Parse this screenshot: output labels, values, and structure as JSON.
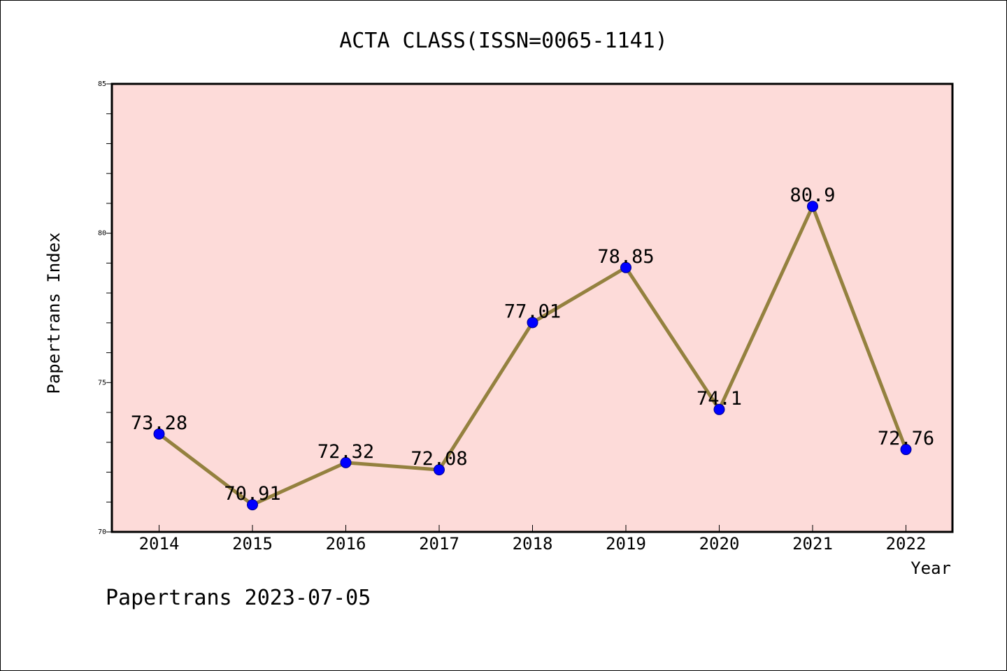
{
  "chart_data": {
    "type": "line",
    "title": "ACTA CLASS(ISSN=0065-1141)",
    "xlabel": "Year",
    "ylabel": "Papertrans Index",
    "categories": [
      "2014",
      "2015",
      "2016",
      "2017",
      "2018",
      "2019",
      "2020",
      "2021",
      "2022"
    ],
    "series": [
      {
        "values": [
          73.28,
          70.91,
          72.32,
          72.08,
          77.01,
          78.85,
          74.1,
          80.9,
          72.76
        ],
        "labels": [
          "73.28",
          "70.91",
          "72.32",
          "72.08",
          "77.01",
          "78.85",
          "74.1",
          "80.9",
          "72.76"
        ]
      }
    ],
    "ylim": [
      70,
      85
    ],
    "y_ticks": [
      "70",
      "75",
      "80",
      "85"
    ],
    "y_minor_step": 1,
    "grid": false,
    "colors": {
      "line": "#94813f",
      "marker": "#0000ff",
      "marker_edge": "#00008b",
      "plot_background": "#fddbd9"
    }
  },
  "footer": {
    "note": "Papertrans 2023-07-05"
  }
}
